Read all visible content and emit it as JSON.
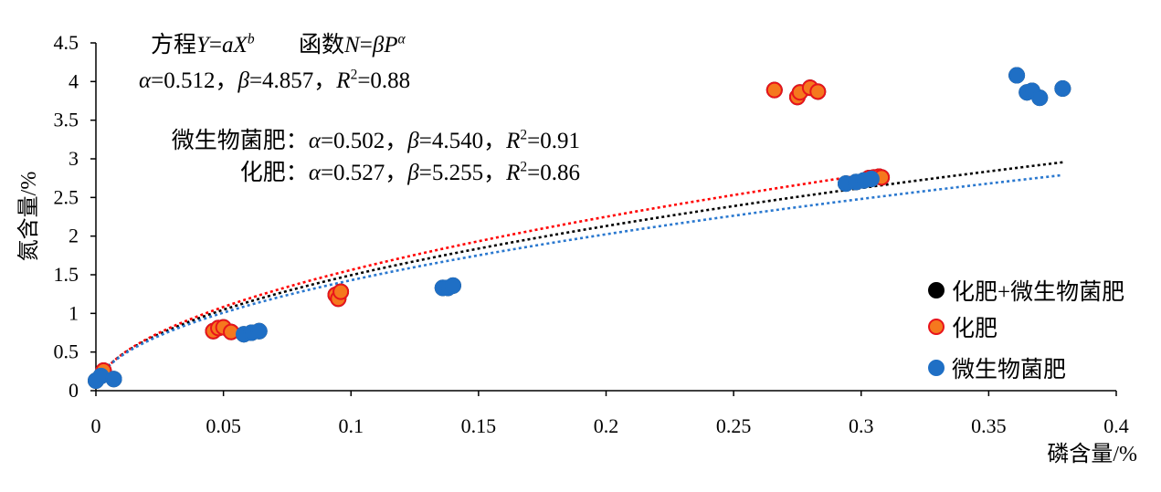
{
  "chart_data": {
    "type": "scatter",
    "xlabel": "磷含量/%",
    "ylabel": "氮含量/%",
    "xlim": [
      0,
      0.4
    ],
    "ylim": [
      0,
      4.5
    ],
    "xticks": [
      "0",
      "0.05",
      "0.1",
      "0.15",
      "0.2",
      "0.25",
      "0.3",
      "0.35",
      "0.4"
    ],
    "yticks": [
      "0",
      "0.5",
      "1",
      "1.5",
      "2",
      "2.5",
      "3",
      "3.5",
      "4",
      "4.5"
    ],
    "grid": false,
    "legend_position": "right",
    "series": [
      {
        "name": "化肥+微生物菌肥",
        "color": "#000000",
        "edge_color": "#000000",
        "line_color": "#000000",
        "trend": {
          "alpha": 0.512,
          "beta": 4.857,
          "r2": 0.88
        },
        "points": [
          [
            0.003,
            0.26
          ],
          [
            0.046,
            0.77
          ],
          [
            0.048,
            0.81
          ],
          [
            0.05,
            0.82
          ],
          [
            0.053,
            0.76
          ],
          [
            0.094,
            1.24
          ],
          [
            0.095,
            1.19
          ],
          [
            0.096,
            1.28
          ],
          [
            0.266,
            3.89
          ],
          [
            0.275,
            3.8
          ],
          [
            0.276,
            3.86
          ],
          [
            0.28,
            3.92
          ],
          [
            0.283,
            3.87
          ],
          [
            0.303,
            2.75
          ],
          [
            0.305,
            2.76
          ],
          [
            0.307,
            2.77
          ],
          [
            0.308,
            2.76
          ],
          [
            0.0,
            0.13
          ],
          [
            0.002,
            0.19
          ],
          [
            0.007,
            0.15
          ],
          [
            0.058,
            0.73
          ],
          [
            0.061,
            0.75
          ],
          [
            0.064,
            0.77
          ],
          [
            0.136,
            1.33
          ],
          [
            0.138,
            1.33
          ],
          [
            0.14,
            1.36
          ],
          [
            0.294,
            2.68
          ],
          [
            0.298,
            2.7
          ],
          [
            0.301,
            2.72
          ],
          [
            0.304,
            2.74
          ],
          [
            0.361,
            4.08
          ],
          [
            0.365,
            3.86
          ],
          [
            0.367,
            3.88
          ],
          [
            0.37,
            3.79
          ],
          [
            0.379,
            3.91
          ]
        ]
      },
      {
        "name": "化肥",
        "color": "#F5781E",
        "edge_color": "#E8141B",
        "line_color": "#FF0000",
        "trend": {
          "alpha": 0.527,
          "beta": 5.255,
          "r2": 0.86
        },
        "points": [
          [
            0.003,
            0.26
          ],
          [
            0.046,
            0.77
          ],
          [
            0.048,
            0.81
          ],
          [
            0.05,
            0.82
          ],
          [
            0.053,
            0.76
          ],
          [
            0.094,
            1.24
          ],
          [
            0.095,
            1.19
          ],
          [
            0.096,
            1.28
          ],
          [
            0.266,
            3.89
          ],
          [
            0.275,
            3.8
          ],
          [
            0.276,
            3.86
          ],
          [
            0.28,
            3.92
          ],
          [
            0.283,
            3.87
          ],
          [
            0.303,
            2.75
          ],
          [
            0.305,
            2.76
          ],
          [
            0.307,
            2.77
          ],
          [
            0.308,
            2.76
          ]
        ]
      },
      {
        "name": "微生物菌肥",
        "color": "#1F6FC5",
        "edge_color": "#1F6FC5",
        "line_color": "#2A78CF",
        "trend": {
          "alpha": 0.502,
          "beta": 4.54,
          "r2": 0.91
        },
        "points": [
          [
            0.0,
            0.13
          ],
          [
            0.002,
            0.19
          ],
          [
            0.007,
            0.15
          ],
          [
            0.058,
            0.73
          ],
          [
            0.061,
            0.75
          ],
          [
            0.064,
            0.77
          ],
          [
            0.136,
            1.33
          ],
          [
            0.138,
            1.33
          ],
          [
            0.14,
            1.36
          ],
          [
            0.294,
            2.68
          ],
          [
            0.298,
            2.7
          ],
          [
            0.301,
            2.72
          ],
          [
            0.304,
            2.74
          ],
          [
            0.361,
            4.08
          ],
          [
            0.365,
            3.86
          ],
          [
            0.367,
            3.88
          ],
          [
            0.37,
            3.79
          ],
          [
            0.379,
            3.91
          ]
        ]
      }
    ],
    "annotations": {
      "equation": [
        "方程",
        "Y",
        "=",
        "aX",
        "b"
      ],
      "function": [
        "函数",
        "N",
        "=",
        "βP",
        "α"
      ],
      "overall": [
        "α",
        "=0.512，",
        "β",
        "=4.857，",
        "R",
        "2",
        "=0.88"
      ],
      "microbial": [
        "微生物菌肥：",
        "α",
        "=0.502，",
        "β",
        "=4.540，",
        "R",
        "2",
        "=0.91"
      ],
      "fertilizer": [
        "化肥：",
        "α",
        "=0.527，",
        "β",
        "=5.255，",
        "R",
        "2",
        "=0.86"
      ]
    }
  }
}
